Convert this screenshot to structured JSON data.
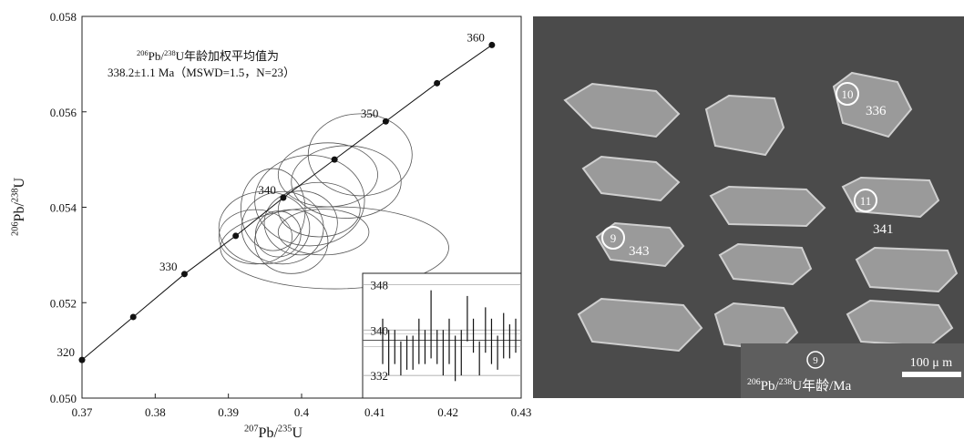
{
  "chart_data": [
    {
      "type": "concordia",
      "annotation": [
        [
          "206",
          "Pb/",
          "238",
          "U年龄加权平均值为"
        ],
        [
          "338.2±1.1 Ma（MSWD=1.5，N=23）"
        ]
      ],
      "xlabel": [
        "207",
        "Pb/",
        "235",
        "U"
      ],
      "ylabel": [
        "206",
        "Pb/",
        "238",
        "U"
      ],
      "xlim": [
        0.37,
        0.43
      ],
      "xticks": [
        0.37,
        0.38,
        0.39,
        0.4,
        0.41,
        0.42,
        0.43
      ],
      "ylim": [
        0.05,
        0.058
      ],
      "yticks": [
        {
          "value": 0.05,
          "label": "0.050"
        },
        0.052,
        0.054,
        0.056,
        0.058
      ],
      "concordia": {
        "x": [
          0.37,
          0.377,
          0.384,
          0.391,
          0.3975,
          0.4045,
          0.4115,
          0.4185,
          0.426
        ],
        "y": [
          0.0508,
          0.0517,
          0.0526,
          0.0534,
          0.0542,
          0.055,
          0.0558,
          0.0566,
          0.0574
        ],
        "labels": [
          "320",
          null,
          "330",
          null,
          "340",
          null,
          "350",
          null,
          "360"
        ]
      },
      "ellipses": {
        "x": [
          0.4045,
          0.408,
          0.4061,
          0.4011,
          0.3974,
          0.3949,
          0.3999,
          0.4024,
          0.3961,
          0.4036,
          0.3986,
          0.3937,
          0.403,
          0.3968
        ],
        "y": [
          0.05315,
          0.0551,
          0.05453,
          0.05414,
          0.05357,
          0.05357,
          0.05367,
          0.05395,
          0.05395,
          0.05468,
          0.05328,
          0.05338,
          0.05348,
          0.05344
        ],
        "x_err": [
          0.0156,
          0.0071,
          0.0075,
          0.0075,
          0.0056,
          0.0062,
          0.005,
          0.0056,
          0.0044,
          0.0068,
          0.005,
          0.005,
          0.0062,
          0.0031
        ],
        "y_err": [
          0.00086,
          0.00086,
          0.00076,
          0.00095,
          0.00076,
          0.00076,
          0.00067,
          0.00057,
          0.00086,
          0.00067,
          0.00067,
          0.00057,
          0.00048,
          0.00048
        ]
      }
    },
    {
      "type": "errorbar",
      "ylim": [
        328,
        350
      ],
      "yticks": [
        332,
        340,
        348
      ],
      "mean": 338.2,
      "mean_err": 1.1,
      "values": [
        338,
        336,
        337,
        335,
        336,
        336,
        338,
        337,
        341,
        337,
        336,
        338,
        335,
        336,
        342,
        339,
        335,
        340,
        338,
        336,
        339,
        338,
        339
      ],
      "errors": [
        4,
        4,
        3,
        3,
        3,
        3,
        4,
        3,
        6,
        3,
        4,
        4,
        4,
        4,
        4,
        3,
        3,
        4,
        4,
        3,
        4,
        3,
        3
      ]
    }
  ],
  "image": {
    "spots": [
      {
        "id": "10",
        "age": "336"
      },
      {
        "id": "11",
        "age": "341"
      },
      {
        "id": "9",
        "age": "343"
      }
    ],
    "legend": {
      "symbol": "9",
      "text": [
        "206",
        "Pb/",
        "238",
        "U年龄/Ma"
      ]
    },
    "scale_bar": "100 μ m"
  }
}
